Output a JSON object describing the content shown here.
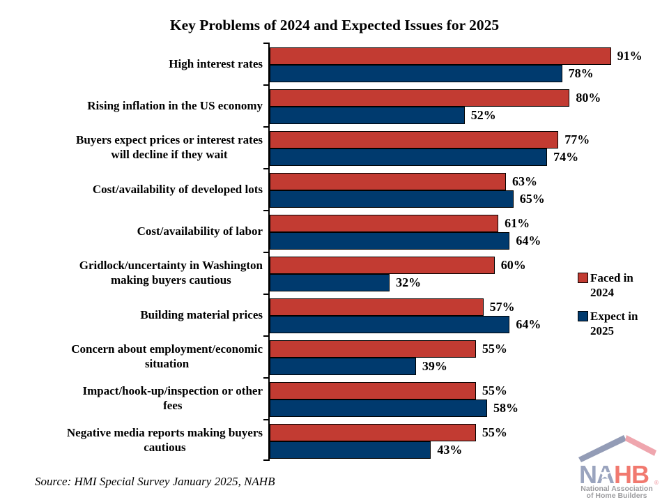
{
  "title": "Key Problems of 2024 and Expected Issues for 2025",
  "source_note": "Source: HMI Special Survey January 2025, NAHB",
  "legend": {
    "position": "right",
    "items": [
      {
        "label": "Faced in 2024"
      },
      {
        "label": "Expect in 2025"
      }
    ]
  },
  "chart_data": {
    "type": "bar",
    "orientation": "horizontal",
    "title": "Key Problems of 2024 and Expected Issues for 2025",
    "categories": [
      "High interest rates",
      "Rising inflation in the US economy",
      "Buyers expect prices or interest rates\nwill decline if they wait",
      "Cost/availability of developed lots",
      "Cost/availability of labor",
      "Gridlock/uncertainty in Washington\nmaking buyers cautious",
      "Building material prices",
      "Concern about employment/economic\nsituation",
      "Impact/hook-up/inspection or other\nfees",
      "Negative media reports making buyers\ncautious"
    ],
    "series": [
      {
        "name": "Faced in 2024",
        "color": "#C23B32",
        "values": [
          91,
          80,
          77,
          63,
          61,
          60,
          57,
          55,
          55,
          55
        ]
      },
      {
        "name": "Expect in 2025",
        "color": "#003A6E",
        "values": [
          78,
          52,
          74,
          65,
          64,
          32,
          64,
          39,
          58,
          43
        ]
      }
    ],
    "xlim": [
      0,
      100
    ],
    "value_suffix": "%",
    "value_labels": true,
    "grid": false,
    "legend_position": "right"
  },
  "logo": {
    "na": "NA",
    "hb": "HB",
    "registered": "®",
    "line1": "National Association",
    "line2": "of Home Builders",
    "colors": {
      "roof_left": "#939CB6",
      "roof_right": "#EFA6AE",
      "na": "#9AA4BE",
      "hb": "#F1796F",
      "subtext": "#9D9DA0"
    }
  }
}
